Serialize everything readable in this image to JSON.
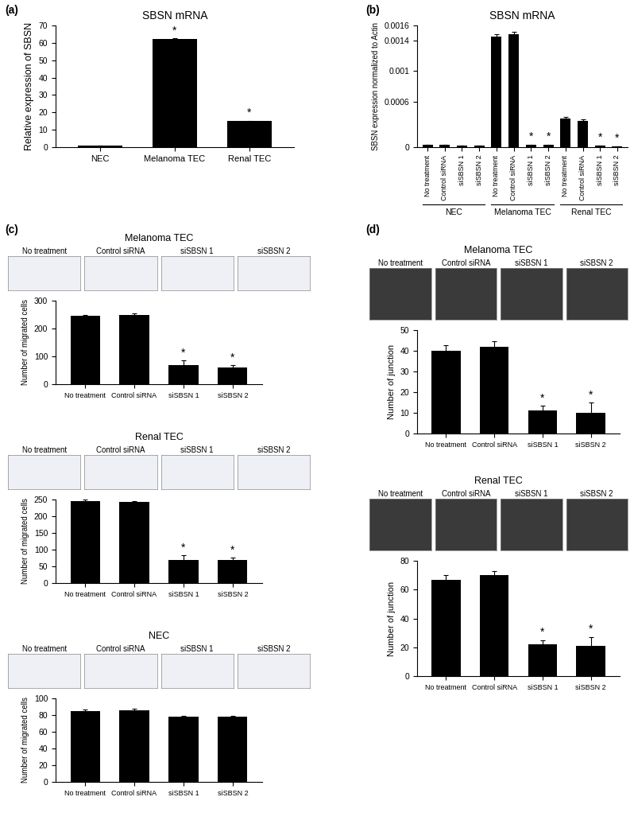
{
  "chart_data": [
    {
      "type": "bar",
      "panel": "(a)",
      "title": "SBSN mRNA",
      "ylabel": "Relative expression of SBSN",
      "categories": [
        "NEC",
        "Melanoma TEC",
        "Renal TEC"
      ],
      "values": [
        1,
        62,
        15
      ],
      "errors": [
        0.1,
        0.5,
        0.3
      ],
      "color": "#000000",
      "significant": [
        false,
        true,
        true
      ],
      "significance_label": "*",
      "ylim": [
        0,
        70
      ],
      "yticks": [
        0,
        10,
        20,
        30,
        40,
        50,
        60,
        70
      ]
    },
    {
      "type": "bar",
      "panel": "(b)",
      "title": "SBSN mRNA",
      "ylabel": "SBSN expression normalized to Actin",
      "categories": [
        "No treatment",
        "Control siRNA",
        "siSBSN 1",
        "siSBSN 2",
        "No treatment",
        "Control siRNA",
        "siSBSN 1",
        "siSBSN 2",
        "No treatment",
        "Control siRNA",
        "siSBSN 1",
        "siSBSN 2"
      ],
      "groups": [
        "NEC",
        "Melanoma TEC",
        "Renal TEC"
      ],
      "values": [
        3e-05,
        3e-05,
        2e-05,
        2e-05,
        0.00145,
        0.00148,
        3e-05,
        3e-05,
        0.00038,
        0.00035,
        2e-05,
        1e-05
      ],
      "errors": [
        3e-06,
        3e-06,
        2e-06,
        2e-06,
        4e-05,
        4e-05,
        5e-06,
        5e-06,
        2e-05,
        2e-05,
        3e-06,
        3e-06
      ],
      "color": "#000000",
      "significant": [
        false,
        false,
        false,
        false,
        false,
        false,
        true,
        true,
        false,
        false,
        true,
        true
      ],
      "significance_label": "*",
      "ylim": [
        0,
        0.0016
      ],
      "yticks": [
        0,
        0.0006,
        0.001,
        0.0014,
        0.0016
      ]
    },
    {
      "type": "bar",
      "panel": "(c)",
      "title": "Melanoma TEC",
      "ylabel": "Number of migrated cells",
      "image_labels": [
        "No treatment",
        "Control siRNA",
        "siSBSN 1",
        "siSBSN 2"
      ],
      "categories": [
        "No treatment",
        "Control siRNA",
        "siSBSN 1",
        "siSBSN 2"
      ],
      "values": [
        245,
        250,
        70,
        60
      ],
      "errors": [
        5,
        5,
        15,
        8
      ],
      "color": "#000000",
      "significant": [
        false,
        false,
        true,
        true
      ],
      "significance_label": "*",
      "ylim": [
        0,
        300
      ],
      "yticks": [
        0,
        100,
        200,
        300
      ]
    },
    {
      "type": "bar",
      "title": "Renal TEC",
      "ylabel": "Number of migrated cells",
      "image_labels": [
        "No treatment",
        "Control siRNA",
        "siSBSN 1",
        "siSBSN 2"
      ],
      "categories": [
        "No treatment",
        "Control siRNA",
        "siSBSN 1",
        "siSBSN 2"
      ],
      "values": [
        245,
        242,
        68,
        68
      ],
      "errors": [
        5,
        4,
        15,
        8
      ],
      "color": "#000000",
      "significant": [
        false,
        false,
        true,
        true
      ],
      "significance_label": "*",
      "ylim": [
        0,
        250
      ],
      "yticks": [
        0,
        50,
        100,
        150,
        200,
        250
      ]
    },
    {
      "type": "bar",
      "title": "NEC",
      "ylabel": "Number of migrated cells",
      "image_labels": [
        "No treatment",
        "Control siRNA",
        "siSBSN 1",
        "siSBSN 2"
      ],
      "categories": [
        "No treatment",
        "Control siRNA",
        "siSBSN 1",
        "siSBSN 2"
      ],
      "values": [
        85,
        86,
        78,
        78
      ],
      "errors": [
        2,
        2,
        1,
        1
      ],
      "color": "#000000",
      "significant": [
        false,
        false,
        false,
        false
      ],
      "significance_label": "*",
      "ylim": [
        0,
        100
      ],
      "yticks": [
        0,
        20,
        40,
        60,
        80,
        100
      ]
    },
    {
      "type": "bar",
      "panel": "(d)",
      "title": "Melanoma TEC",
      "ylabel": "Number of junction",
      "image_labels": [
        "No treatment",
        "Control siRNA",
        "siSBSN 1",
        "siSBSN 2"
      ],
      "categories": [
        "No treatment",
        "Control siRNA",
        "siSBSN 1",
        "siSBSN 2"
      ],
      "values": [
        40,
        42,
        11,
        10
      ],
      "errors": [
        2.5,
        2.5,
        2.5,
        5
      ],
      "color": "#000000",
      "significant": [
        false,
        false,
        true,
        true
      ],
      "significance_label": "*",
      "ylim": [
        0,
        50
      ],
      "yticks": [
        0,
        10,
        20,
        30,
        40,
        50
      ]
    },
    {
      "type": "bar",
      "title": "Renal TEC",
      "ylabel": "Number of junction",
      "image_labels": [
        "No treatment",
        "Control siRNA",
        "siSBSN 1",
        "siSBSN 2"
      ],
      "categories": [
        "No treatment",
        "Control siRNA",
        "siSBSN 1",
        "siSBSN 2"
      ],
      "values": [
        67,
        70,
        22,
        21
      ],
      "errors": [
        3,
        3,
        3,
        6
      ],
      "color": "#000000",
      "significant": [
        false,
        false,
        true,
        true
      ],
      "significance_label": "*",
      "ylim": [
        0,
        80
      ],
      "yticks": [
        0,
        20,
        40,
        60,
        80
      ]
    }
  ]
}
